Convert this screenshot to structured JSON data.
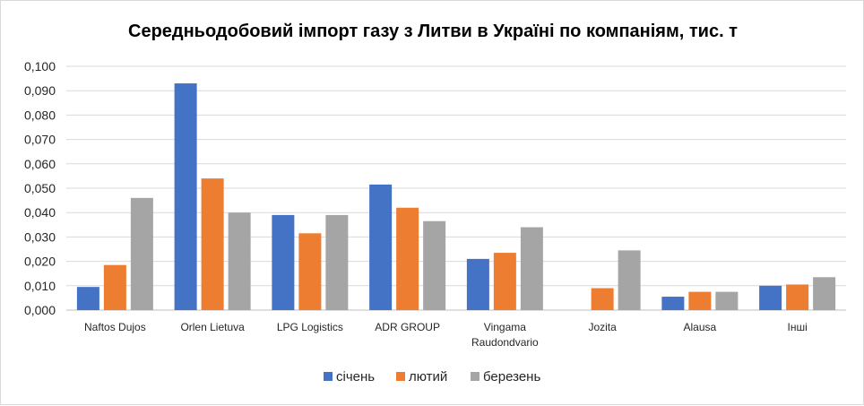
{
  "chart_data": {
    "type": "bar",
    "title": "Середньодобовий імпорт газу з Литви в Україні по компаніям, тис. т",
    "xlabel": "",
    "ylabel": "",
    "ylim": [
      0,
      0.1
    ],
    "yticks": [
      "0,000",
      "0,010",
      "0,020",
      "0,030",
      "0,040",
      "0,050",
      "0,060",
      "0,070",
      "0,080",
      "0,090",
      "0,100"
    ],
    "categories": [
      [
        "Naftos Dujos"
      ],
      [
        "Orlen Lietuva"
      ],
      [
        "LPG Logistics"
      ],
      [
        "ADR GROUP"
      ],
      [
        "Vingama",
        "Raudondvario"
      ],
      [
        "Jozita"
      ],
      [
        "Alausa"
      ],
      [
        "Інші"
      ]
    ],
    "series": [
      {
        "name": "січень",
        "color": "#4472c4",
        "values": [
          0.0095,
          0.093,
          0.039,
          0.0515,
          0.021,
          0.0,
          0.0055,
          0.01
        ]
      },
      {
        "name": "лютий",
        "color": "#ed7d31",
        "values": [
          0.0185,
          0.054,
          0.0315,
          0.042,
          0.0235,
          0.009,
          0.0075,
          0.0105
        ]
      },
      {
        "name": "березень",
        "color": "#a5a5a5",
        "values": [
          0.046,
          0.04,
          0.039,
          0.0365,
          0.034,
          0.0245,
          0.0075,
          0.0135
        ]
      }
    ],
    "grid": true,
    "legend": "bottom"
  }
}
